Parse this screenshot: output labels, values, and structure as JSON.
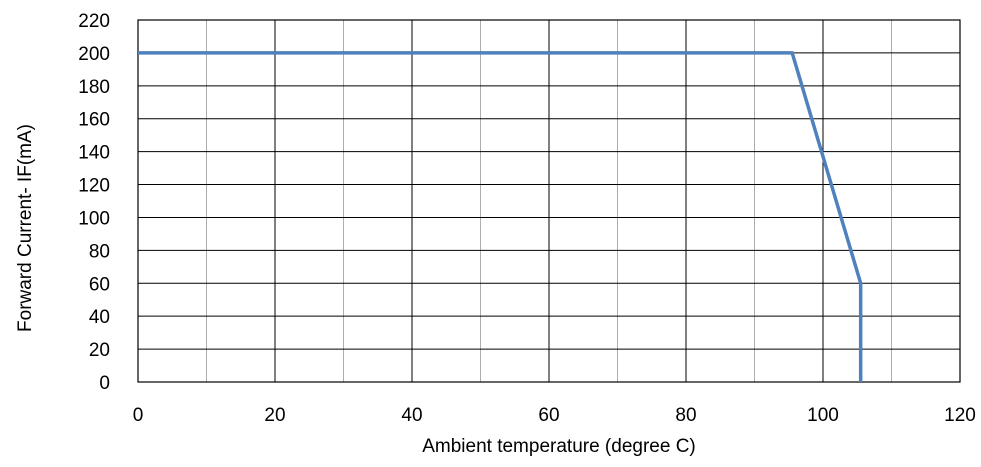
{
  "chart_data": {
    "type": "line",
    "xlabel": "Ambient temperature  (degree  C)",
    "ylabel": "Forward Current-  IF(mA)",
    "xlim": [
      0,
      120
    ],
    "ylim": [
      0,
      220
    ],
    "x_ticks": [
      "0",
      "20",
      "40",
      "60",
      "80",
      "100",
      "120"
    ],
    "y_ticks": [
      "0",
      "20",
      "40",
      "60",
      "80",
      "100",
      "120",
      "140",
      "160",
      "180",
      "200",
      "220"
    ],
    "grid": true,
    "series": [
      {
        "x": [
          0,
          95.5,
          105.5,
          105.5
        ],
        "y": [
          200,
          200,
          60,
          0
        ],
        "color": "#4f81bd"
      }
    ]
  }
}
